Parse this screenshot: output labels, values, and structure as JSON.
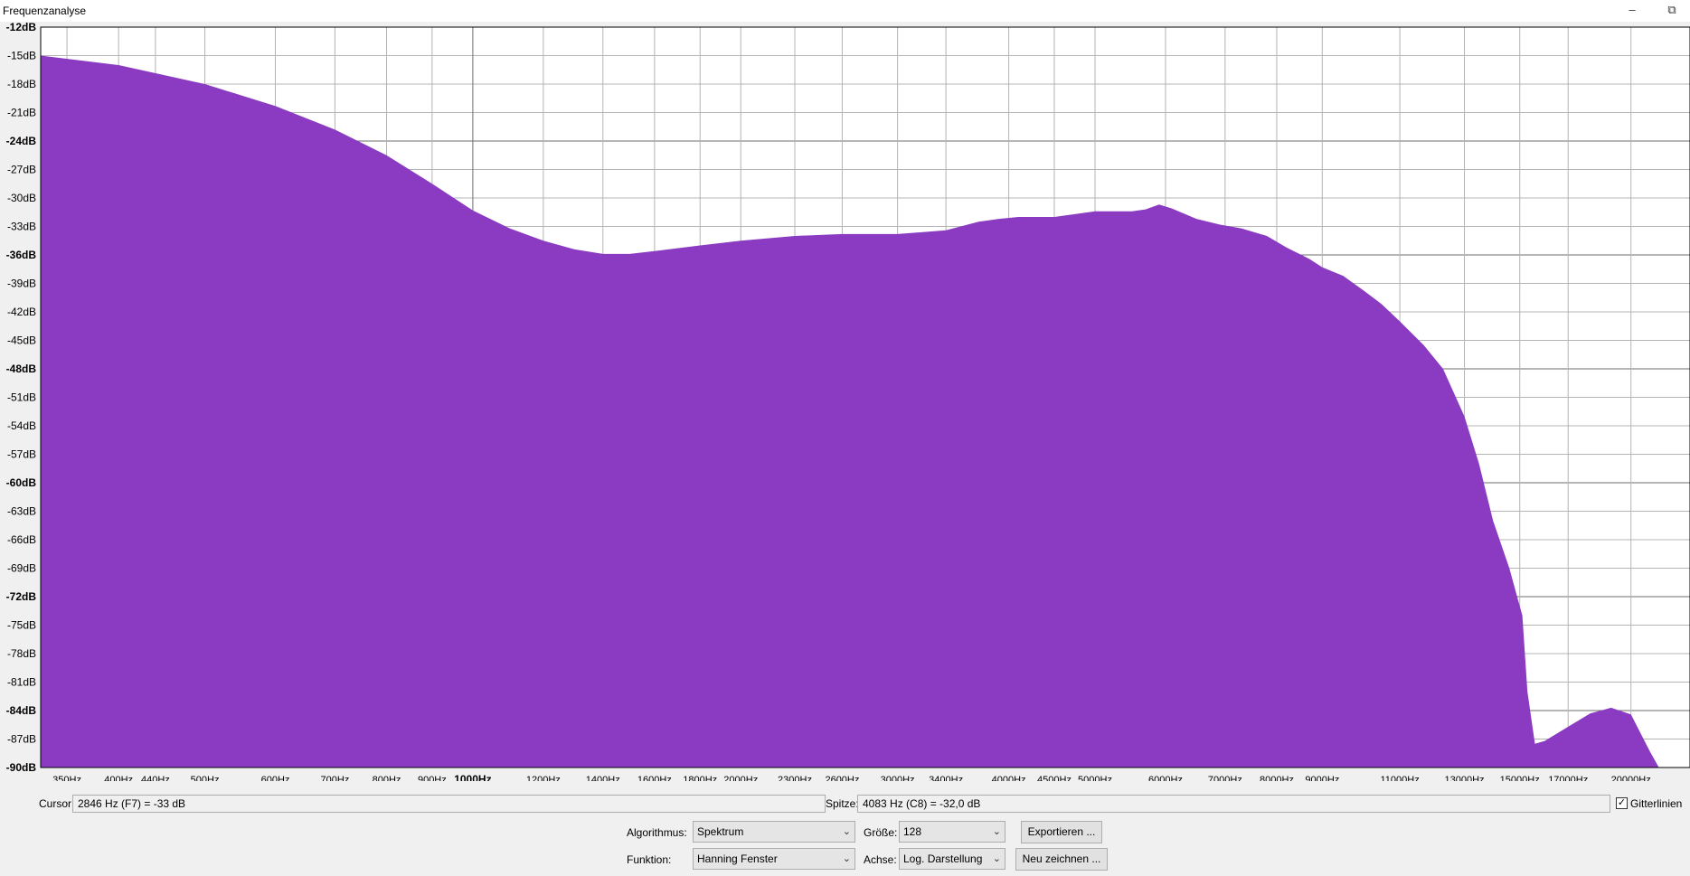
{
  "window": {
    "title": "Frequenzanalyse",
    "restore_icon": "restore-icon",
    "minimize_icon": "minimize-icon"
  },
  "chart_data": {
    "type": "area",
    "fill_color": "#8a3bc2",
    "grid": true,
    "x_scale": "log",
    "xlim": [
      327,
      23300
    ],
    "ylim": [
      -90,
      -12
    ],
    "y_ticks": [
      {
        "v": -12,
        "label": "-12dB",
        "major": true
      },
      {
        "v": -15,
        "label": "-15dB",
        "major": false
      },
      {
        "v": -18,
        "label": "-18dB",
        "major": false
      },
      {
        "v": -21,
        "label": "-21dB",
        "major": false
      },
      {
        "v": -24,
        "label": "-24dB",
        "major": true
      },
      {
        "v": -27,
        "label": "-27dB",
        "major": false
      },
      {
        "v": -30,
        "label": "-30dB",
        "major": false
      },
      {
        "v": -33,
        "label": "-33dB",
        "major": false
      },
      {
        "v": -36,
        "label": "-36dB",
        "major": true
      },
      {
        "v": -39,
        "label": "-39dB",
        "major": false
      },
      {
        "v": -42,
        "label": "-42dB",
        "major": false
      },
      {
        "v": -45,
        "label": "-45dB",
        "major": false
      },
      {
        "v": -48,
        "label": "-48dB",
        "major": true
      },
      {
        "v": -51,
        "label": "-51dB",
        "major": false
      },
      {
        "v": -54,
        "label": "-54dB",
        "major": false
      },
      {
        "v": -57,
        "label": "-57dB",
        "major": false
      },
      {
        "v": -60,
        "label": "-60dB",
        "major": true
      },
      {
        "v": -63,
        "label": "-63dB",
        "major": false
      },
      {
        "v": -66,
        "label": "-66dB",
        "major": false
      },
      {
        "v": -69,
        "label": "-69dB",
        "major": false
      },
      {
        "v": -72,
        "label": "-72dB",
        "major": true
      },
      {
        "v": -75,
        "label": "-75dB",
        "major": false
      },
      {
        "v": -78,
        "label": "-78dB",
        "major": false
      },
      {
        "v": -81,
        "label": "-81dB",
        "major": false
      },
      {
        "v": -84,
        "label": "-84dB",
        "major": true
      },
      {
        "v": -87,
        "label": "-87dB",
        "major": false
      },
      {
        "v": -90,
        "label": "-90dB",
        "major": true
      }
    ],
    "x_ticks": [
      {
        "v": 350,
        "label": "350Hz",
        "major": false
      },
      {
        "v": 400,
        "label": "400Hz",
        "major": false
      },
      {
        "v": 440,
        "label": "440Hz",
        "major": false
      },
      {
        "v": 500,
        "label": "500Hz",
        "major": false
      },
      {
        "v": 600,
        "label": "600Hz",
        "major": false
      },
      {
        "v": 700,
        "label": "700Hz",
        "major": false
      },
      {
        "v": 800,
        "label": "800Hz",
        "major": false
      },
      {
        "v": 900,
        "label": "900Hz",
        "major": false
      },
      {
        "v": 1000,
        "label": "1000Hz",
        "major": true
      },
      {
        "v": 1200,
        "label": "1200Hz",
        "major": false
      },
      {
        "v": 1400,
        "label": "1400Hz",
        "major": false
      },
      {
        "v": 1600,
        "label": "1600Hz",
        "major": false
      },
      {
        "v": 1800,
        "label": "1800Hz",
        "major": false
      },
      {
        "v": 2000,
        "label": "2000Hz",
        "major": false
      },
      {
        "v": 2300,
        "label": "2300Hz",
        "major": false
      },
      {
        "v": 2600,
        "label": "2600Hz",
        "major": false
      },
      {
        "v": 3000,
        "label": "3000Hz",
        "major": false
      },
      {
        "v": 3400,
        "label": "3400Hz",
        "major": false
      },
      {
        "v": 4000,
        "label": "4000Hz",
        "major": false
      },
      {
        "v": 4500,
        "label": "4500Hz",
        "major": false
      },
      {
        "v": 5000,
        "label": "5000Hz",
        "major": false
      },
      {
        "v": 6000,
        "label": "6000Hz",
        "major": false
      },
      {
        "v": 7000,
        "label": "7000Hz",
        "major": false
      },
      {
        "v": 8000,
        "label": "8000Hz",
        "major": false
      },
      {
        "v": 9000,
        "label": "9000Hz",
        "major": false
      },
      {
        "v": 11000,
        "label": "11000Hz",
        "major": false
      },
      {
        "v": 13000,
        "label": "13000Hz",
        "major": false
      },
      {
        "v": 15000,
        "label": "15000Hz",
        "major": false
      },
      {
        "v": 17000,
        "label": "17000Hz",
        "major": false
      },
      {
        "v": 20000,
        "label": "20000Hz",
        "major": false
      }
    ],
    "series": [
      {
        "x": [
          327,
          400,
          500,
          600,
          700,
          800,
          900,
          1000,
          1100,
          1200,
          1300,
          1400,
          1500,
          1600,
          1800,
          2000,
          2300,
          2600,
          3000,
          3400,
          3700,
          3900,
          4100,
          4500,
          5000,
          5500,
          5700,
          5900,
          6100,
          6500,
          6900,
          7300,
          7800,
          8200,
          8700,
          9000,
          9500,
          10000,
          10500,
          11000,
          11700,
          12300,
          13000,
          13500,
          14000,
          14600,
          15100,
          15300,
          15600,
          16000,
          17000,
          18000,
          19000,
          20000,
          21000,
          21500,
          22000
        ],
        "y": [
          -15,
          -16,
          -18,
          -20.3,
          -22.8,
          -25.5,
          -28.5,
          -31.3,
          -33.2,
          -34.5,
          -35.4,
          -35.9,
          -35.9,
          -35.6,
          -35,
          -34.5,
          -34,
          -33.8,
          -33.8,
          -33.4,
          -32.5,
          -32.2,
          -32.0,
          -32.0,
          -31.4,
          -31.4,
          -31.2,
          -30.7,
          -31.1,
          -32.2,
          -32.8,
          -33.2,
          -34.0,
          -35.2,
          -36.4,
          -37.3,
          -38.2,
          -39.7,
          -41.2,
          -43.0,
          -45.5,
          -48.0,
          -53,
          -58,
          -64,
          -69,
          -74,
          -82,
          -87.5,
          -87.2,
          -85.7,
          -84.3,
          -83.7,
          -84.4,
          -88.3,
          -90,
          -90
        ]
      }
    ]
  },
  "controls": {
    "cursor_label": "Cursor:",
    "cursor_value": "2846 Hz (F7) = -33 dB",
    "peak_label": "Spitze:",
    "peak_value": "4083 Hz (C8) = -32,0 dB",
    "grid_label": "Gitterlinien",
    "grid_checked": true,
    "algorithm_label": "Algorithmus:",
    "algorithm_value": "Spektrum",
    "size_label": "Größe:",
    "size_value": "128",
    "export_button": "Exportieren ...",
    "function_label": "Funktion:",
    "function_value": "Hanning Fenster",
    "axis_label": "Achse:",
    "axis_value": "Log. Darstellung",
    "redraw_button": "Neu zeichnen ..."
  }
}
